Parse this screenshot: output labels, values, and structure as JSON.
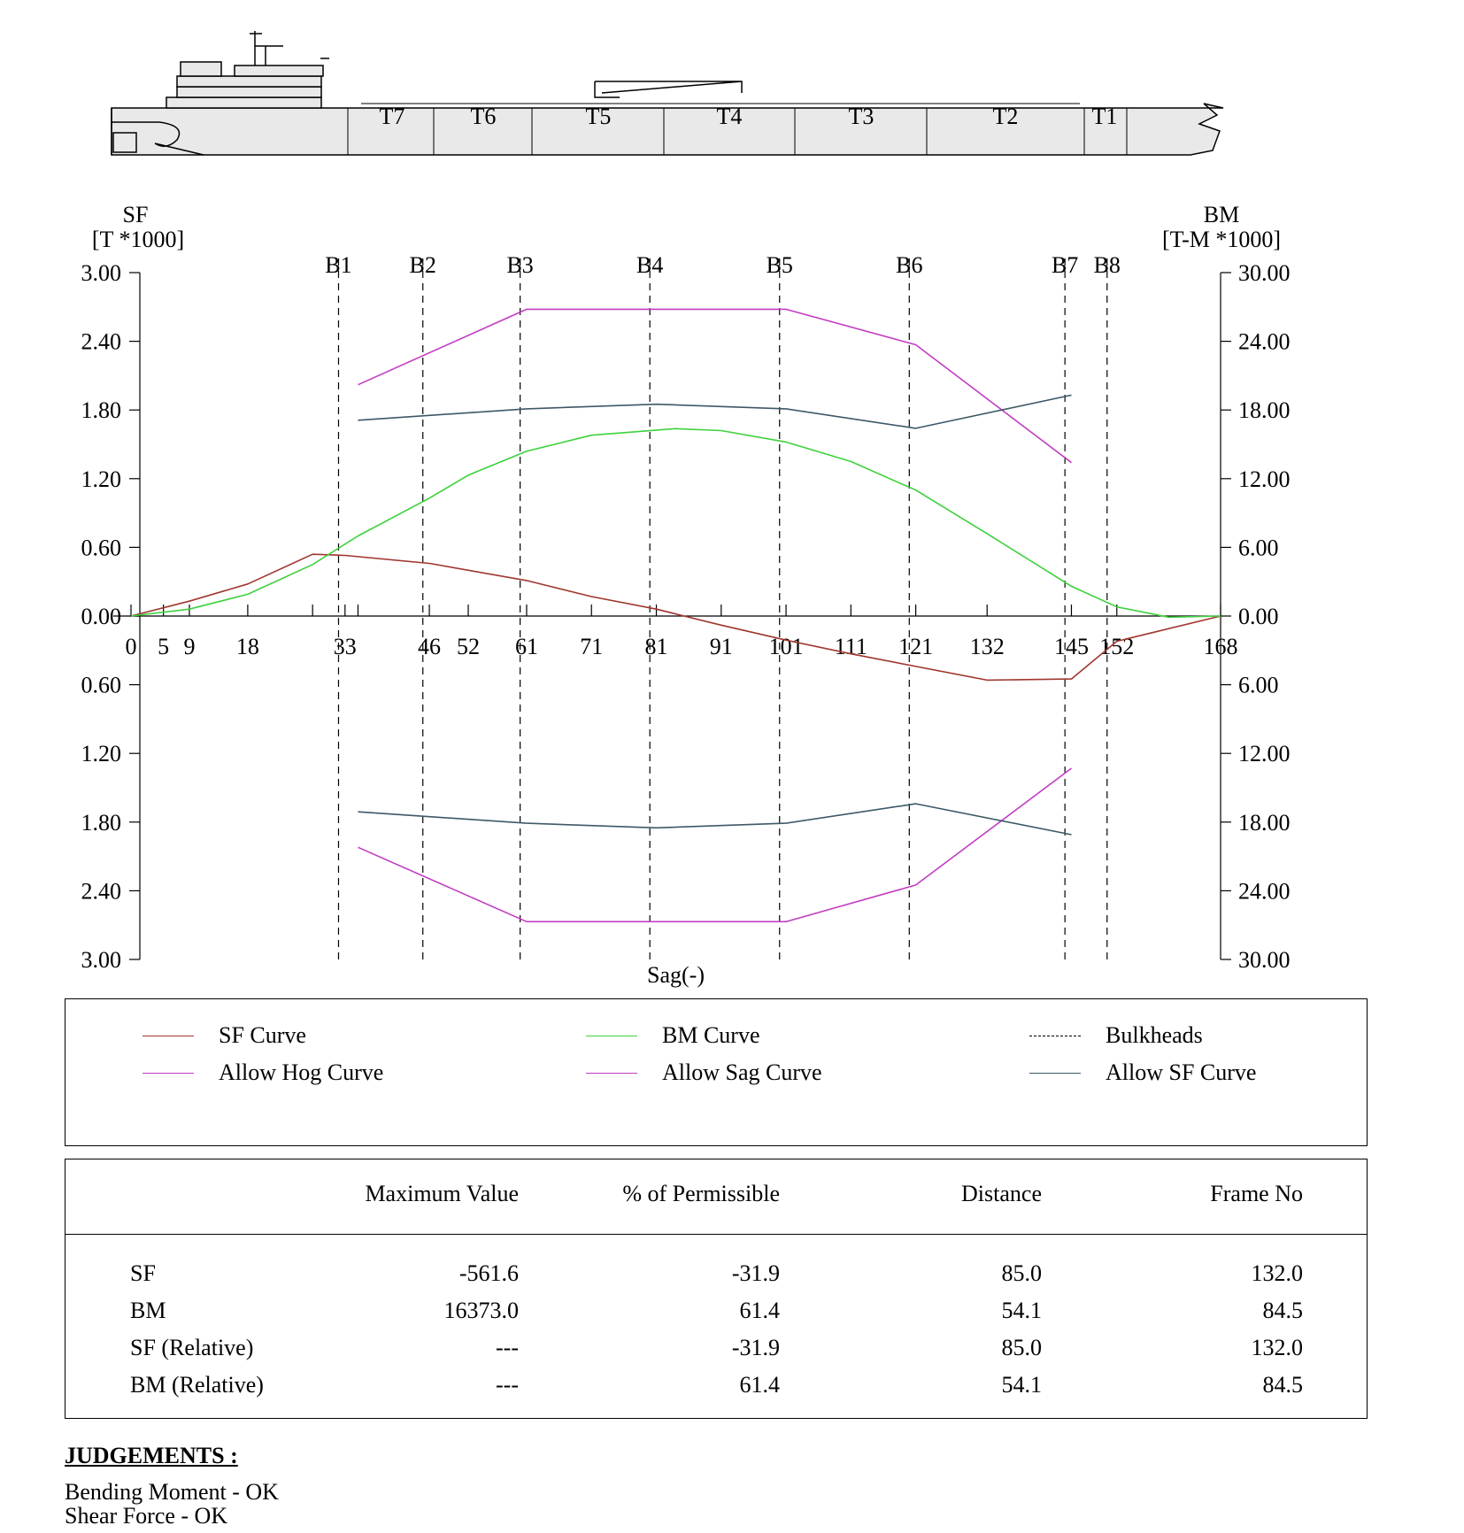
{
  "ship": {
    "tanks": [
      "T7",
      "T6",
      "T5",
      "T4",
      "T3",
      "T2",
      "T1"
    ]
  },
  "chart_data": {
    "type": "line",
    "left_axis": {
      "label_line1": "SF",
      "label_line2": "[T *1000]",
      "range": [
        -3.0,
        3.0
      ],
      "tick_labels": [
        "3.00",
        "2.40",
        "1.80",
        "1.20",
        "0.60",
        "0.00",
        "0.60",
        "1.20",
        "1.80",
        "2.40",
        "3.00"
      ]
    },
    "right_axis": {
      "label_line1": "BM",
      "label_line2": "[T-M *1000]",
      "range": [
        -30.0,
        30.0
      ],
      "tick_labels": [
        "30.00",
        "24.00",
        "18.00",
        "12.00",
        "6.00",
        "0.00",
        "6.00",
        "12.00",
        "18.00",
        "24.00",
        "30.00"
      ]
    },
    "x_range": [
      0,
      168
    ],
    "x_tick_labels": [
      0,
      5,
      9,
      18,
      33,
      46,
      52,
      61,
      71,
      81,
      91,
      101,
      111,
      121,
      132,
      145,
      152,
      168
    ],
    "x_minor_ticks": [
      28,
      35
    ],
    "xlabel": "Sag(-)",
    "bulkheads": [
      {
        "name": "B1",
        "x": 32
      },
      {
        "name": "B2",
        "x": 45
      },
      {
        "name": "B3",
        "x": 60
      },
      {
        "name": "B4",
        "x": 80
      },
      {
        "name": "B5",
        "x": 100
      },
      {
        "name": "B6",
        "x": 120
      },
      {
        "name": "B7",
        "x": 144
      },
      {
        "name": "B8",
        "x": 150.5
      }
    ],
    "series": [
      {
        "name": "SF Curve",
        "axis": "left",
        "color": "#a0362e",
        "x": [
          0,
          9,
          18,
          28,
          33,
          46,
          61,
          71,
          81,
          91,
          101,
          111,
          121,
          132,
          145,
          152,
          168
        ],
        "y": [
          0.0,
          0.13,
          0.28,
          0.54,
          0.53,
          0.46,
          0.31,
          0.17,
          0.06,
          -0.08,
          -0.21,
          -0.33,
          -0.44,
          -0.56,
          -0.55,
          -0.22,
          0.0
        ]
      },
      {
        "name": "BM Curve",
        "axis": "right",
        "color": "#3ed13e",
        "x": [
          0,
          9,
          18,
          28,
          35,
          46,
          52,
          61,
          71,
          84,
          91,
          101,
          111,
          121,
          132,
          145,
          152,
          160,
          168
        ],
        "y": [
          0.0,
          0.6,
          1.9,
          4.5,
          7.0,
          10.3,
          12.3,
          14.4,
          15.8,
          16.37,
          16.2,
          15.2,
          13.5,
          11.0,
          7.2,
          2.6,
          0.8,
          -0.1,
          0.0
        ]
      },
      {
        "name": "Allow Hog Curve",
        "axis": "right",
        "color": "#c23cc2",
        "x": [
          35,
          61,
          101,
          121,
          145
        ],
        "y": [
          20.2,
          26.8,
          26.8,
          23.7,
          13.4
        ]
      },
      {
        "name": "Allow Sag Curve",
        "axis": "right",
        "color": "#c23cc2",
        "x": [
          35,
          61,
          101,
          121,
          145
        ],
        "y": [
          -20.2,
          -26.7,
          -26.7,
          -23.5,
          -13.3
        ]
      },
      {
        "name": "Allow SF Curve",
        "axis": "left",
        "color": "#3d5866",
        "x": [
          35,
          61,
          81,
          101,
          121,
          145
        ],
        "y": [
          1.71,
          1.81,
          1.85,
          1.81,
          1.64,
          1.93
        ]
      },
      {
        "name": "Allow SF Curve",
        "axis": "left",
        "color": "#3d5866",
        "x": [
          35,
          61,
          81,
          101,
          121,
          145
        ],
        "y": [
          -1.71,
          -1.81,
          -1.85,
          -1.81,
          -1.64,
          -1.91
        ]
      }
    ]
  },
  "legend": [
    {
      "label": "SF Curve",
      "color": "#a0362e",
      "dashed": false
    },
    {
      "label": "BM Curve",
      "color": "#3ed13e",
      "dashed": false
    },
    {
      "label": "Bulkheads",
      "color": "#000000",
      "dashed": true
    },
    {
      "label": "Allow Hog Curve",
      "color": "#c23cc2",
      "dashed": false
    },
    {
      "label": "Allow Sag Curve",
      "color": "#c23cc2",
      "dashed": false
    },
    {
      "label": "Allow SF Curve",
      "color": "#3d5866",
      "dashed": false
    }
  ],
  "results": {
    "headers": [
      "Maximum Value",
      "% of Permissible",
      "Distance",
      "Frame No"
    ],
    "rows": [
      {
        "label": "SF",
        "values": [
          "-561.6",
          "-31.9",
          "85.0",
          "132.0"
        ]
      },
      {
        "label": "BM",
        "values": [
          "16373.0",
          "61.4",
          "54.1",
          "84.5"
        ]
      },
      {
        "label": "SF (Relative)",
        "values": [
          "---",
          "-31.9",
          "85.0",
          "132.0"
        ]
      },
      {
        "label": "BM (Relative)",
        "values": [
          "---",
          "61.4",
          "54.1",
          "84.5"
        ]
      }
    ]
  },
  "judgements": {
    "title": "JUDGEMENTS :",
    "lines": [
      "Bending Moment - OK",
      "Shear Force - OK"
    ]
  }
}
